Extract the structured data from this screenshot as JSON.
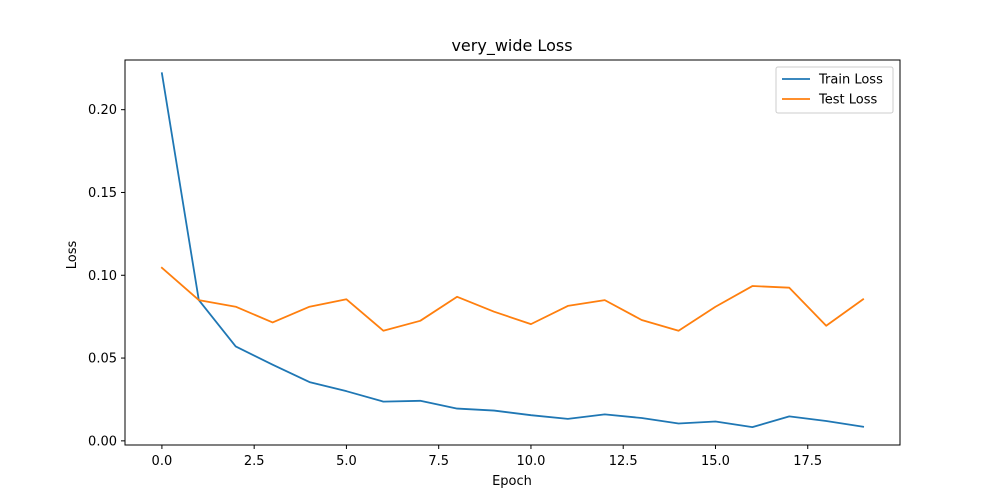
{
  "chart_data": {
    "type": "line",
    "title": "very_wide Loss",
    "xlabel": "Epoch",
    "ylabel": "Loss",
    "x": [
      0,
      1,
      2,
      3,
      4,
      5,
      6,
      7,
      8,
      9,
      10,
      11,
      12,
      13,
      14,
      15,
      16,
      17,
      18,
      19
    ],
    "xlim": [
      -1,
      20
    ],
    "ylim": [
      -0.0025,
      0.23
    ],
    "xticks": [
      0.0,
      2.5,
      5.0,
      7.5,
      10.0,
      12.5,
      15.0,
      17.5
    ],
    "xtick_labels": [
      "0.0",
      "2.5",
      "5.0",
      "7.5",
      "10.0",
      "12.5",
      "15.0",
      "17.5"
    ],
    "yticks": [
      0.0,
      0.05,
      0.1,
      0.15,
      0.2
    ],
    "ytick_labels": [
      "0.00",
      "0.05",
      "0.10",
      "0.15",
      "0.20"
    ],
    "grid": false,
    "legend_position": "top-right",
    "series": [
      {
        "name": "Train Loss",
        "color": "#1f77b4",
        "values": [
          0.222,
          0.085,
          0.057,
          0.046,
          0.0355,
          0.03,
          0.0237,
          0.0242,
          0.0195,
          0.0183,
          0.0155,
          0.0133,
          0.016,
          0.0138,
          0.0105,
          0.0117,
          0.0083,
          0.0148,
          0.012,
          0.0085
        ]
      },
      {
        "name": "Test Loss",
        "color": "#ff7f0e",
        "values": [
          0.1045,
          0.085,
          0.081,
          0.0715,
          0.081,
          0.0855,
          0.0665,
          0.0725,
          0.087,
          0.078,
          0.0705,
          0.0815,
          0.085,
          0.073,
          0.0665,
          0.081,
          0.0935,
          0.0925,
          0.0695,
          0.0855
        ]
      }
    ]
  }
}
